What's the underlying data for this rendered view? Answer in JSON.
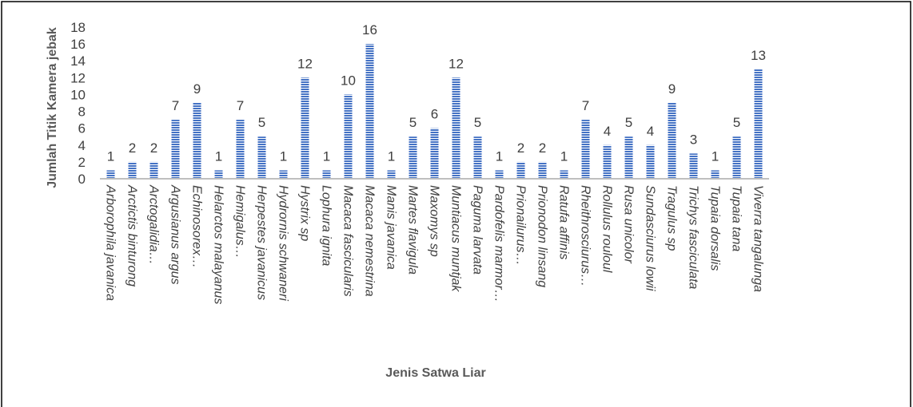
{
  "chart_data": {
    "type": "bar",
    "x_label": "Jenis Satwa Liar",
    "y_label": "Jumlah Titik Kamera jebak",
    "categories": [
      "Arborophila javanica",
      "Arctictis binturong",
      "Arctogalidia…",
      "Argusianus argus",
      "Echinosorex…",
      "Helarctos malayanus",
      "Hemigalus…",
      "Herpestes javanicus",
      "Hydrornis schwaneri",
      "Hystrix sp",
      "Lophura ignita",
      "Macaca fascicularis",
      "Macaca nemestrina",
      "Manis javanica",
      "Martes flavigula",
      "Maxomys sp",
      "Muntiacus muntjak",
      "Paguma larvata",
      "Pardofelis marmor…",
      "Prionailurus…",
      "Prionodon linsang",
      "Ratufa affinis",
      "Rheithrosciurus…",
      "Rollulus rouloul",
      "Rusa unicolor",
      "Sundasciurus lowii",
      "Tragulus sp",
      "Trichys fasciculata",
      "Tupaia dorsalis",
      "Tupaia tana",
      "Viverra tangalunga"
    ],
    "values": [
      1,
      2,
      2,
      7,
      9,
      1,
      7,
      5,
      1,
      12,
      1,
      10,
      16,
      1,
      5,
      6,
      12,
      5,
      1,
      2,
      2,
      1,
      7,
      4,
      5,
      4,
      9,
      3,
      1,
      5,
      13
    ],
    "color": "#4472c4",
    "ylim": [
      0,
      18
    ],
    "yticks": [
      0,
      2,
      4,
      6,
      8,
      10,
      12,
      14,
      16,
      18
    ],
    "grid": false
  }
}
